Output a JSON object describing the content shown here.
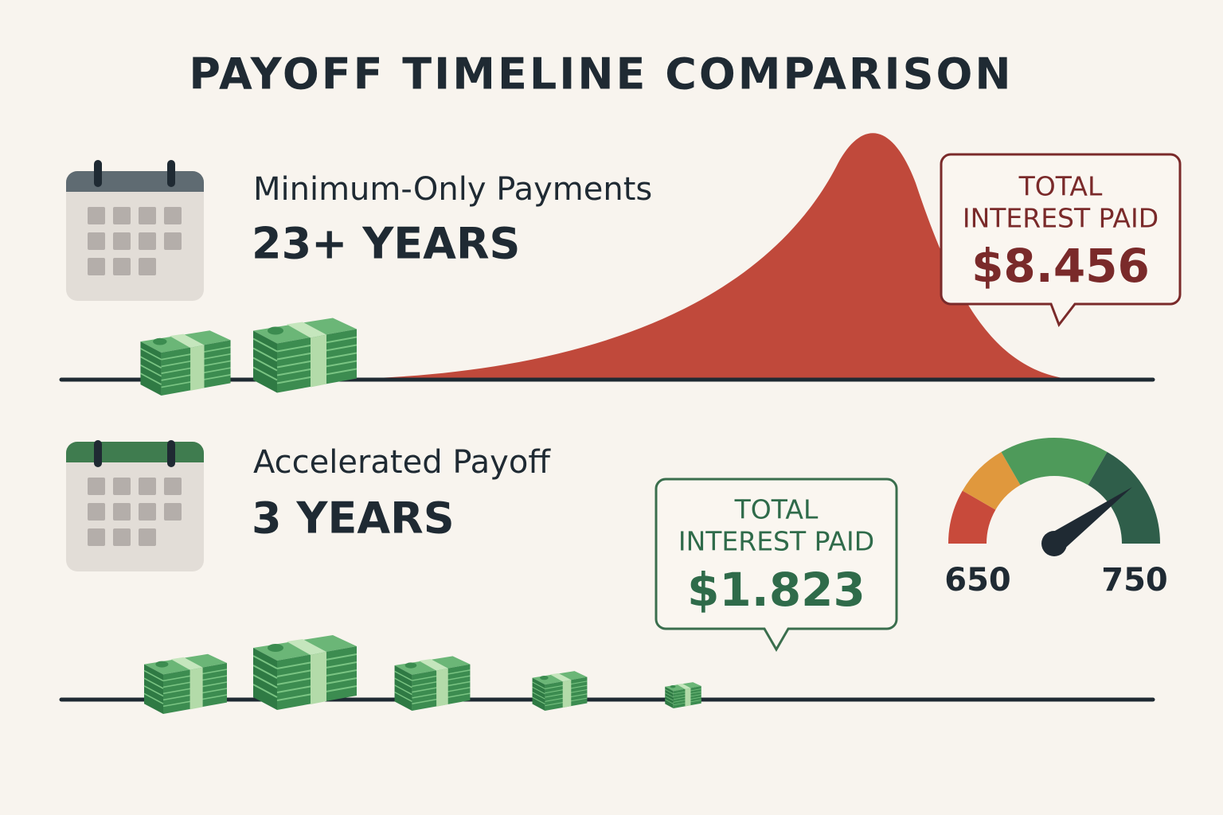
{
  "title": "PAYOFF TIMELINE COMPARISON",
  "sections": [
    {
      "label": "Minimum-Only Payments",
      "duration": "23+ YEARS",
      "callout": {
        "label_lines": [
          "TOTAL",
          "INTEREST PAID"
        ],
        "amount": "$8.456"
      }
    },
    {
      "label": "Accelerated Payoff",
      "duration": "3 YEARS",
      "callout": {
        "label_lines": [
          "TOTAL",
          "INTEREST PAID"
        ],
        "amount": "$1.823"
      }
    }
  ],
  "gauge": {
    "min_label": 650,
    "max_label": 750
  }
}
